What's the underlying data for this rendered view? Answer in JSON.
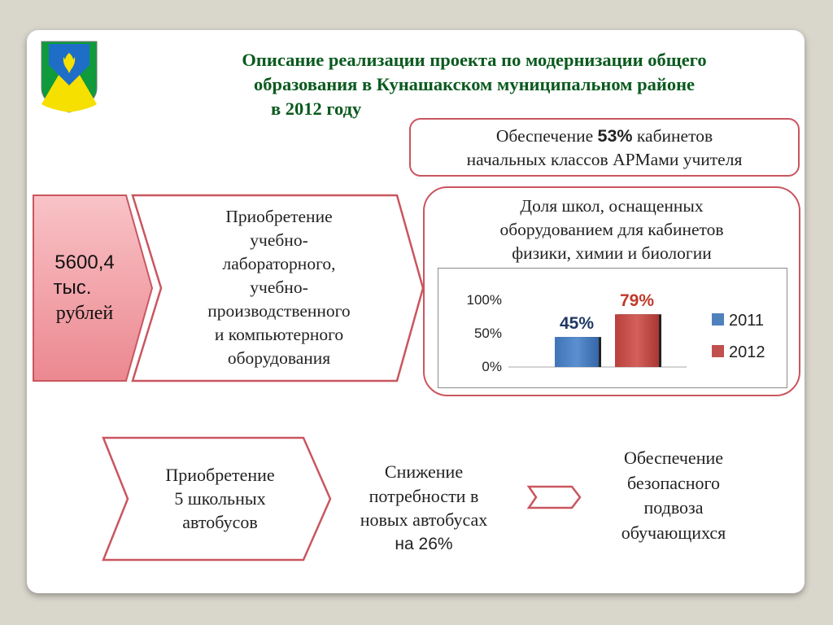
{
  "title": {
    "line1": "Описание реализации проекта по модернизации общего",
    "line2": "образования в Кунашакском муниципальном районе",
    "line3": "в 2012 году"
  },
  "armbox": {
    "pre": "Обеспечение ",
    "bold": "53%",
    "post": " кабинетов",
    "line2": "начальных классов АРМами учителя"
  },
  "budget": {
    "line1": "5600,4",
    "line2": "тыс.",
    "line3": "рублей"
  },
  "acquisition": [
    "Приобретение",
    "учебно-",
    "лабораторного,",
    "учебно-",
    "производственного",
    "и компьютерного",
    "оборудования"
  ],
  "share_box": {
    "caption": [
      "Доля  школ, оснащенных",
      "оборудованием для кабинетов",
      "физики, химии и биологии"
    ]
  },
  "chart_data": {
    "type": "bar",
    "categories": [
      "2011",
      "2012"
    ],
    "values": [
      45,
      79
    ],
    "data_labels": [
      "45%",
      "79%"
    ],
    "ylim": [
      0,
      100
    ],
    "yticks": [
      "100%",
      "50%",
      "0%"
    ],
    "legend": [
      "2011",
      "2012"
    ],
    "legend_position": "right",
    "colors": [
      "#4f81bd",
      "#c0504d"
    ]
  },
  "buses": [
    "Приобретение",
    "5 школьных",
    "автобусов"
  ],
  "reduction": [
    "Снижение",
    "потребности в",
    "новых автобусах",
    "на 26%"
  ],
  "safety": [
    "Обеспечение",
    "безопасного",
    "подвоза",
    "обучающихся"
  ],
  "colors": {
    "title": "#0a5a1e",
    "border": "#c9565f",
    "budget_fill": "#f2a0a6"
  }
}
